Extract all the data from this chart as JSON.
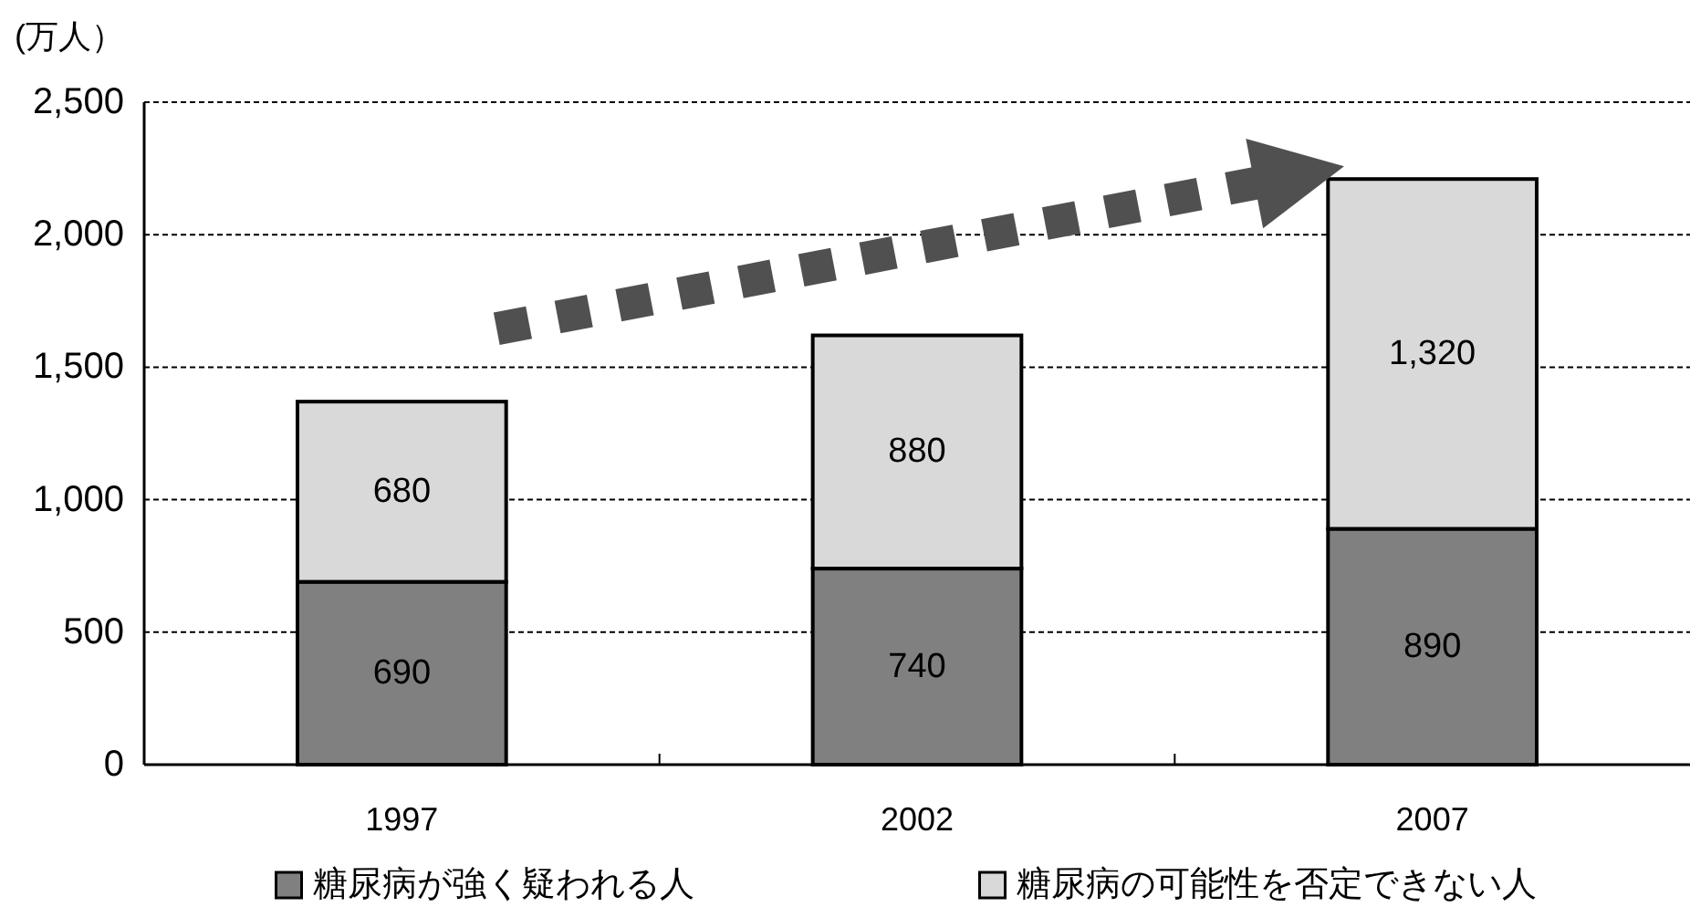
{
  "chart_data": {
    "type": "bar",
    "stacked": true,
    "ylabel": "(万人）",
    "categories": [
      "1997",
      "2002",
      "2007"
    ],
    "series": [
      {
        "name": "糖尿病が強く疑われる人",
        "color": "#808080",
        "values": [
          690,
          740,
          890
        ],
        "value_labels": [
          "690",
          "740",
          "890"
        ]
      },
      {
        "name": "糖尿病の可能性を否定できない人",
        "color": "#d9d9d9",
        "values": [
          680,
          880,
          1320
        ],
        "value_labels": [
          "680",
          "880",
          "1,320"
        ]
      }
    ],
    "ylim": [
      0,
      2500
    ],
    "yticks": [
      0,
      500,
      {
        "value": 1000,
        "label": "1,000"
      },
      {
        "value": 1500,
        "label": "1,500"
      },
      {
        "value": 2000,
        "label": "2,000"
      },
      {
        "value": 2500,
        "label": "2,500"
      }
    ],
    "grid": "y",
    "legend": "bottom"
  }
}
